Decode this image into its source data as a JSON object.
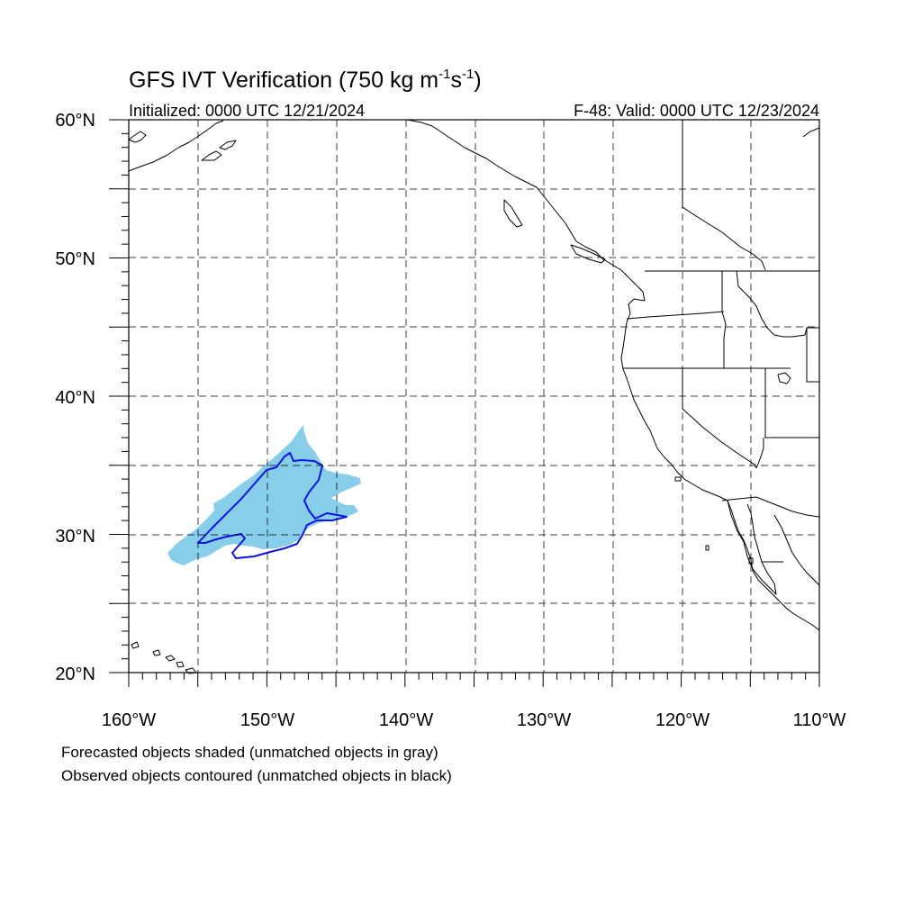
{
  "title": {
    "main": "GFS IVT Verification (750 kg m",
    "exp1": "-1",
    "mid": "s",
    "exp2": "-1",
    "end": ")"
  },
  "initialized": "Initialized: 0000 UTC 12/21/2024",
  "valid": "F-48: Valid: 0000 UTC 12/23/2024",
  "lat_labels": [
    "60°N",
    "50°N",
    "40°N",
    "30°N",
    "20°N"
  ],
  "lon_labels": [
    "160°W",
    "150°W",
    "140°W",
    "130°W",
    "120°W",
    "110°W"
  ],
  "legend": {
    "forecast": "Forecasted objects shaded (unmatched objects in gray)",
    "observed": "Observed objects contoured (unmatched objects in black)"
  },
  "colors": {
    "forecast_fill": "#87ceeb",
    "observed_contour": "#0a14e6",
    "coastline": "#000000",
    "grid": "#000000"
  },
  "map_extent": {
    "lon": [
      -160,
      -110
    ],
    "lat": [
      20,
      60
    ]
  }
}
